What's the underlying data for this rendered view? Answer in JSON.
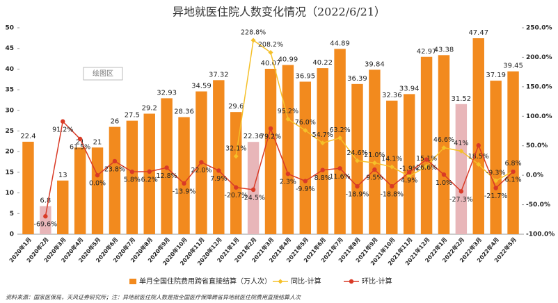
{
  "chart_data": {
    "type": "bar_line",
    "title": "异地就医住院人数变化情况（2022/6/21）",
    "plot_area_label": "绘图区",
    "note": "资料来源：国家医保局，天风证券研究所；注：异地就医住院人数是指全国医疗保障跨省异地就医住院费用直接结算人次",
    "categories": [
      "2020年1月",
      "2020年2月",
      "2020年3月",
      "2020年4月",
      "2020年5月",
      "2020年6月",
      "2020年7月",
      "2020年8月",
      "2020年9月",
      "2020年10月",
      "2020年11月",
      "2020年12月",
      "2021年1月",
      "2021年2月",
      "2021年3月",
      "2021年4月",
      "2021年5月",
      "2021年6月",
      "2021年7月",
      "2021年8月",
      "2021年9月",
      "2021年10月",
      "2021年11月",
      "2021年12月",
      "2022年1月",
      "2022年2月",
      "2022年3月",
      "2022年4月",
      "2022年5月"
    ],
    "ylim": [
      0,
      50
    ],
    "yticks": [
      0,
      5,
      10,
      15,
      20,
      25,
      30,
      35,
      40,
      45,
      50
    ],
    "y2lim": [
      -100,
      250
    ],
    "y2ticks": [
      {
        "value": -100,
        "label": "-100.0%"
      },
      {
        "value": -50,
        "label": "-50.0%"
      },
      {
        "value": 0,
        "label": "0.0%"
      },
      {
        "value": 50,
        "label": "50.0%"
      },
      {
        "value": 100,
        "label": "100.0%"
      },
      {
        "value": 150,
        "label": "150.0%"
      },
      {
        "value": 200,
        "label": "200.0%"
      },
      {
        "value": 250,
        "label": "250.0%"
      }
    ],
    "legend": "bottom",
    "series": [
      {
        "name": "单月全国住院费用跨省直接结算（万人次）",
        "type": "bar",
        "color": "#f28a1e",
        "colors": [
          "#f28a1e",
          "#e8b6b9",
          "#f28a1e",
          "#f28a1e",
          "#f28a1e",
          "#f28a1e",
          "#f28a1e",
          "#f28a1e",
          "#f28a1e",
          "#f28a1e",
          "#f28a1e",
          "#f28a1e",
          "#f28a1e",
          "#e8b6b9",
          "#f28a1e",
          "#f28a1e",
          "#f28a1e",
          "#f28a1e",
          "#f28a1e",
          "#f28a1e",
          "#f28a1e",
          "#f28a1e",
          "#f28a1e",
          "#f28a1e",
          "#f28a1e",
          "#e8b6b9",
          "#f28a1e",
          "#f28a1e",
          "#f28a1e"
        ],
        "values": [
          22.4,
          6.8,
          13,
          21,
          21,
          26,
          27.5,
          29.2,
          32.93,
          28.36,
          34.59,
          37.32,
          29.6,
          22.36,
          40.07,
          40.99,
          36.95,
          40.22,
          44.89,
          36.39,
          39.84,
          32.36,
          33.94,
          42.97,
          43.38,
          31.52,
          47.47,
          37.19,
          39.45
        ]
      },
      {
        "name": "同比-计算",
        "type": "line",
        "axis": "y2",
        "color": "#f5c02a",
        "marker": "diamond",
        "values": [
          null,
          null,
          null,
          null,
          null,
          null,
          null,
          null,
          null,
          null,
          null,
          null,
          32.1,
          228.8,
          208.2,
          95.2,
          76.0,
          54.7,
          63.2,
          24.6,
          21.0,
          14.1,
          -1.9,
          15.1,
          46.6,
          41,
          18.5,
          -9.3,
          6.8
        ],
        "value_labels": [
          null,
          null,
          null,
          null,
          null,
          null,
          null,
          null,
          null,
          null,
          null,
          null,
          "32.1%",
          "228.8%",
          "208.2%",
          "95.2%",
          "76.0%",
          "54.7%",
          "63.2%",
          "24.6%",
          "21.0%",
          "14.1%",
          "-1.9%",
          "15.1%",
          "46.6%",
          "41%",
          "18.5%",
          "-9.3%",
          "6.8%"
        ]
      },
      {
        "name": "环比-计算",
        "type": "line",
        "axis": "y2",
        "color": "#d93a26",
        "marker": "circle",
        "values": [
          null,
          -69.6,
          91.2,
          61.5,
          0.0,
          23.8,
          5.8,
          6.2,
          12.8,
          -13.9,
          22.0,
          7.9,
          -20.7,
          -24.5,
          79.2,
          2.3,
          -9.9,
          8.8,
          11.6,
          -18.9,
          9.5,
          -18.8,
          4.9,
          26.6,
          1.0,
          -27.3,
          50.6,
          -21.7,
          6.1
        ],
        "value_labels": [
          null,
          "-69.6%",
          "91.2%",
          "61.5%",
          "0.0%",
          "23.8%",
          "5.8%",
          "6.2%",
          "12.8%",
          "-13.9%",
          "22.0%",
          "7.9%",
          "-20.7%",
          "-24.5%",
          "79.2%",
          "2.3%",
          "-9.9%",
          "8.8%",
          "11.6%",
          "-18.9%",
          "9.5%",
          "-18.8%",
          "4.9%",
          "26.6%",
          "1.0%",
          "-27.3%",
          null,
          "-21.7%",
          "6.1%"
        ]
      }
    ]
  }
}
